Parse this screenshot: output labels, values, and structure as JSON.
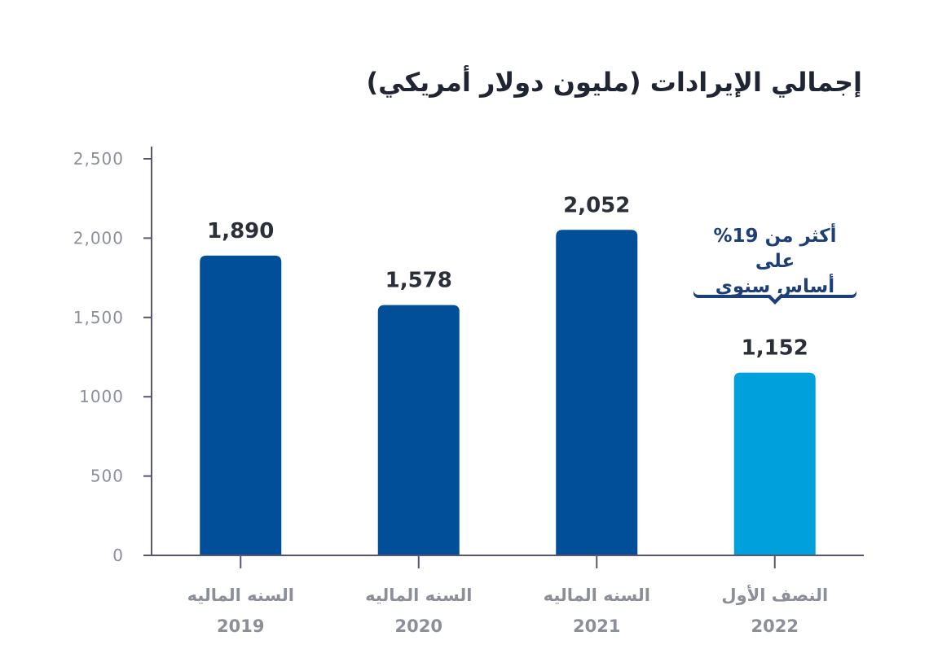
{
  "chart_data": {
    "type": "bar",
    "title": "إجمالي الإيرادات (مليون دولار أمريكي)",
    "categories": [
      {
        "line1": "السنه الماليه",
        "line2": "2019"
      },
      {
        "line1": "السنه الماليه",
        "line2": "2020"
      },
      {
        "line1": "السنه الماليه",
        "line2": "2021"
      },
      {
        "line1": "النصف الأول",
        "line2": "2022"
      }
    ],
    "values": [
      1890,
      1578,
      2052,
      1152
    ],
    "value_labels": [
      "1,890",
      "1,578",
      "2,052",
      "1,152"
    ],
    "ylim": [
      0,
      2500
    ],
    "yticks": [
      0,
      500,
      1000,
      1500,
      2000,
      2500
    ],
    "ytick_labels": [
      "0",
      "500",
      "1000",
      "1,500",
      "2,000",
      "2,500"
    ],
    "bar_colors": [
      "#004f98",
      "#004f98",
      "#004f98",
      "#00a0dc"
    ],
    "axis_color": "#5a5470",
    "annotation": {
      "category_index": 3,
      "line1": "أكثر من 19% على",
      "line2": "أساس سنوي"
    }
  }
}
